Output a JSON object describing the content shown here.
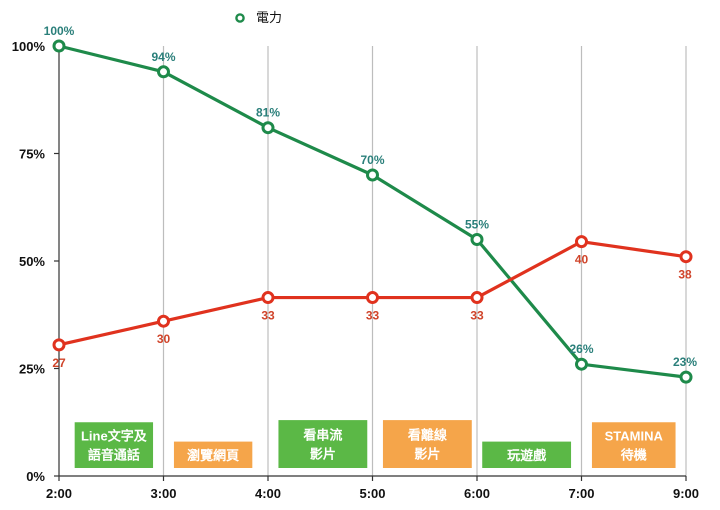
{
  "chart_data": {
    "type": "line",
    "title": "",
    "xlabel": "",
    "ylabel": "",
    "categories": [
      "2:00",
      "3:00",
      "4:00",
      "5:00",
      "6:00",
      "7:00",
      "9:00"
    ],
    "ylim": [
      0,
      100
    ],
    "yticks": [
      "0%",
      "25%",
      "50%",
      "75%",
      "100%"
    ],
    "grid": "vertical",
    "legend_position": "top-center",
    "series": [
      {
        "name": "電力",
        "color": "#1e8a4a",
        "values": [
          100,
          94,
          81,
          70,
          55,
          26,
          23
        ],
        "labels": [
          "100%",
          "94%",
          "81%",
          "70%",
          "55%",
          "26%",
          "23%"
        ],
        "in_legend": true
      },
      {
        "color": "#e0321e",
        "values": [
          30.5,
          36,
          41.5,
          41.5,
          41.5,
          54.5,
          51
        ],
        "labels": [
          "27",
          "30",
          "33",
          "33",
          "33",
          "40",
          "38"
        ],
        "in_legend": false
      }
    ],
    "activities": [
      {
        "lines": [
          "Line文字及",
          "語音通話"
        ],
        "color": "#5bb846",
        "x_from": 0.15,
        "x_to": 0.9,
        "y_top": 12.5
      },
      {
        "lines": [
          "瀏覽網頁"
        ],
        "color": "#f5a54a",
        "x_from": 1.1,
        "x_to": 1.85,
        "y_top": 8
      },
      {
        "lines": [
          "看串流",
          "影片"
        ],
        "color": "#5bb846",
        "x_from": 2.1,
        "x_to": 2.95,
        "y_top": 13
      },
      {
        "lines": [
          "看離線",
          "影片"
        ],
        "color": "#f5a54a",
        "x_from": 3.1,
        "x_to": 3.95,
        "y_top": 13
      },
      {
        "lines": [
          "玩遊戲"
        ],
        "color": "#5bb846",
        "x_from": 4.05,
        "x_to": 4.9,
        "y_top": 8
      },
      {
        "lines": [
          "STAMINA",
          "待機"
        ],
        "color": "#f5a54a",
        "x_from": 5.1,
        "x_to": 5.9,
        "y_top": 12.5
      }
    ]
  }
}
